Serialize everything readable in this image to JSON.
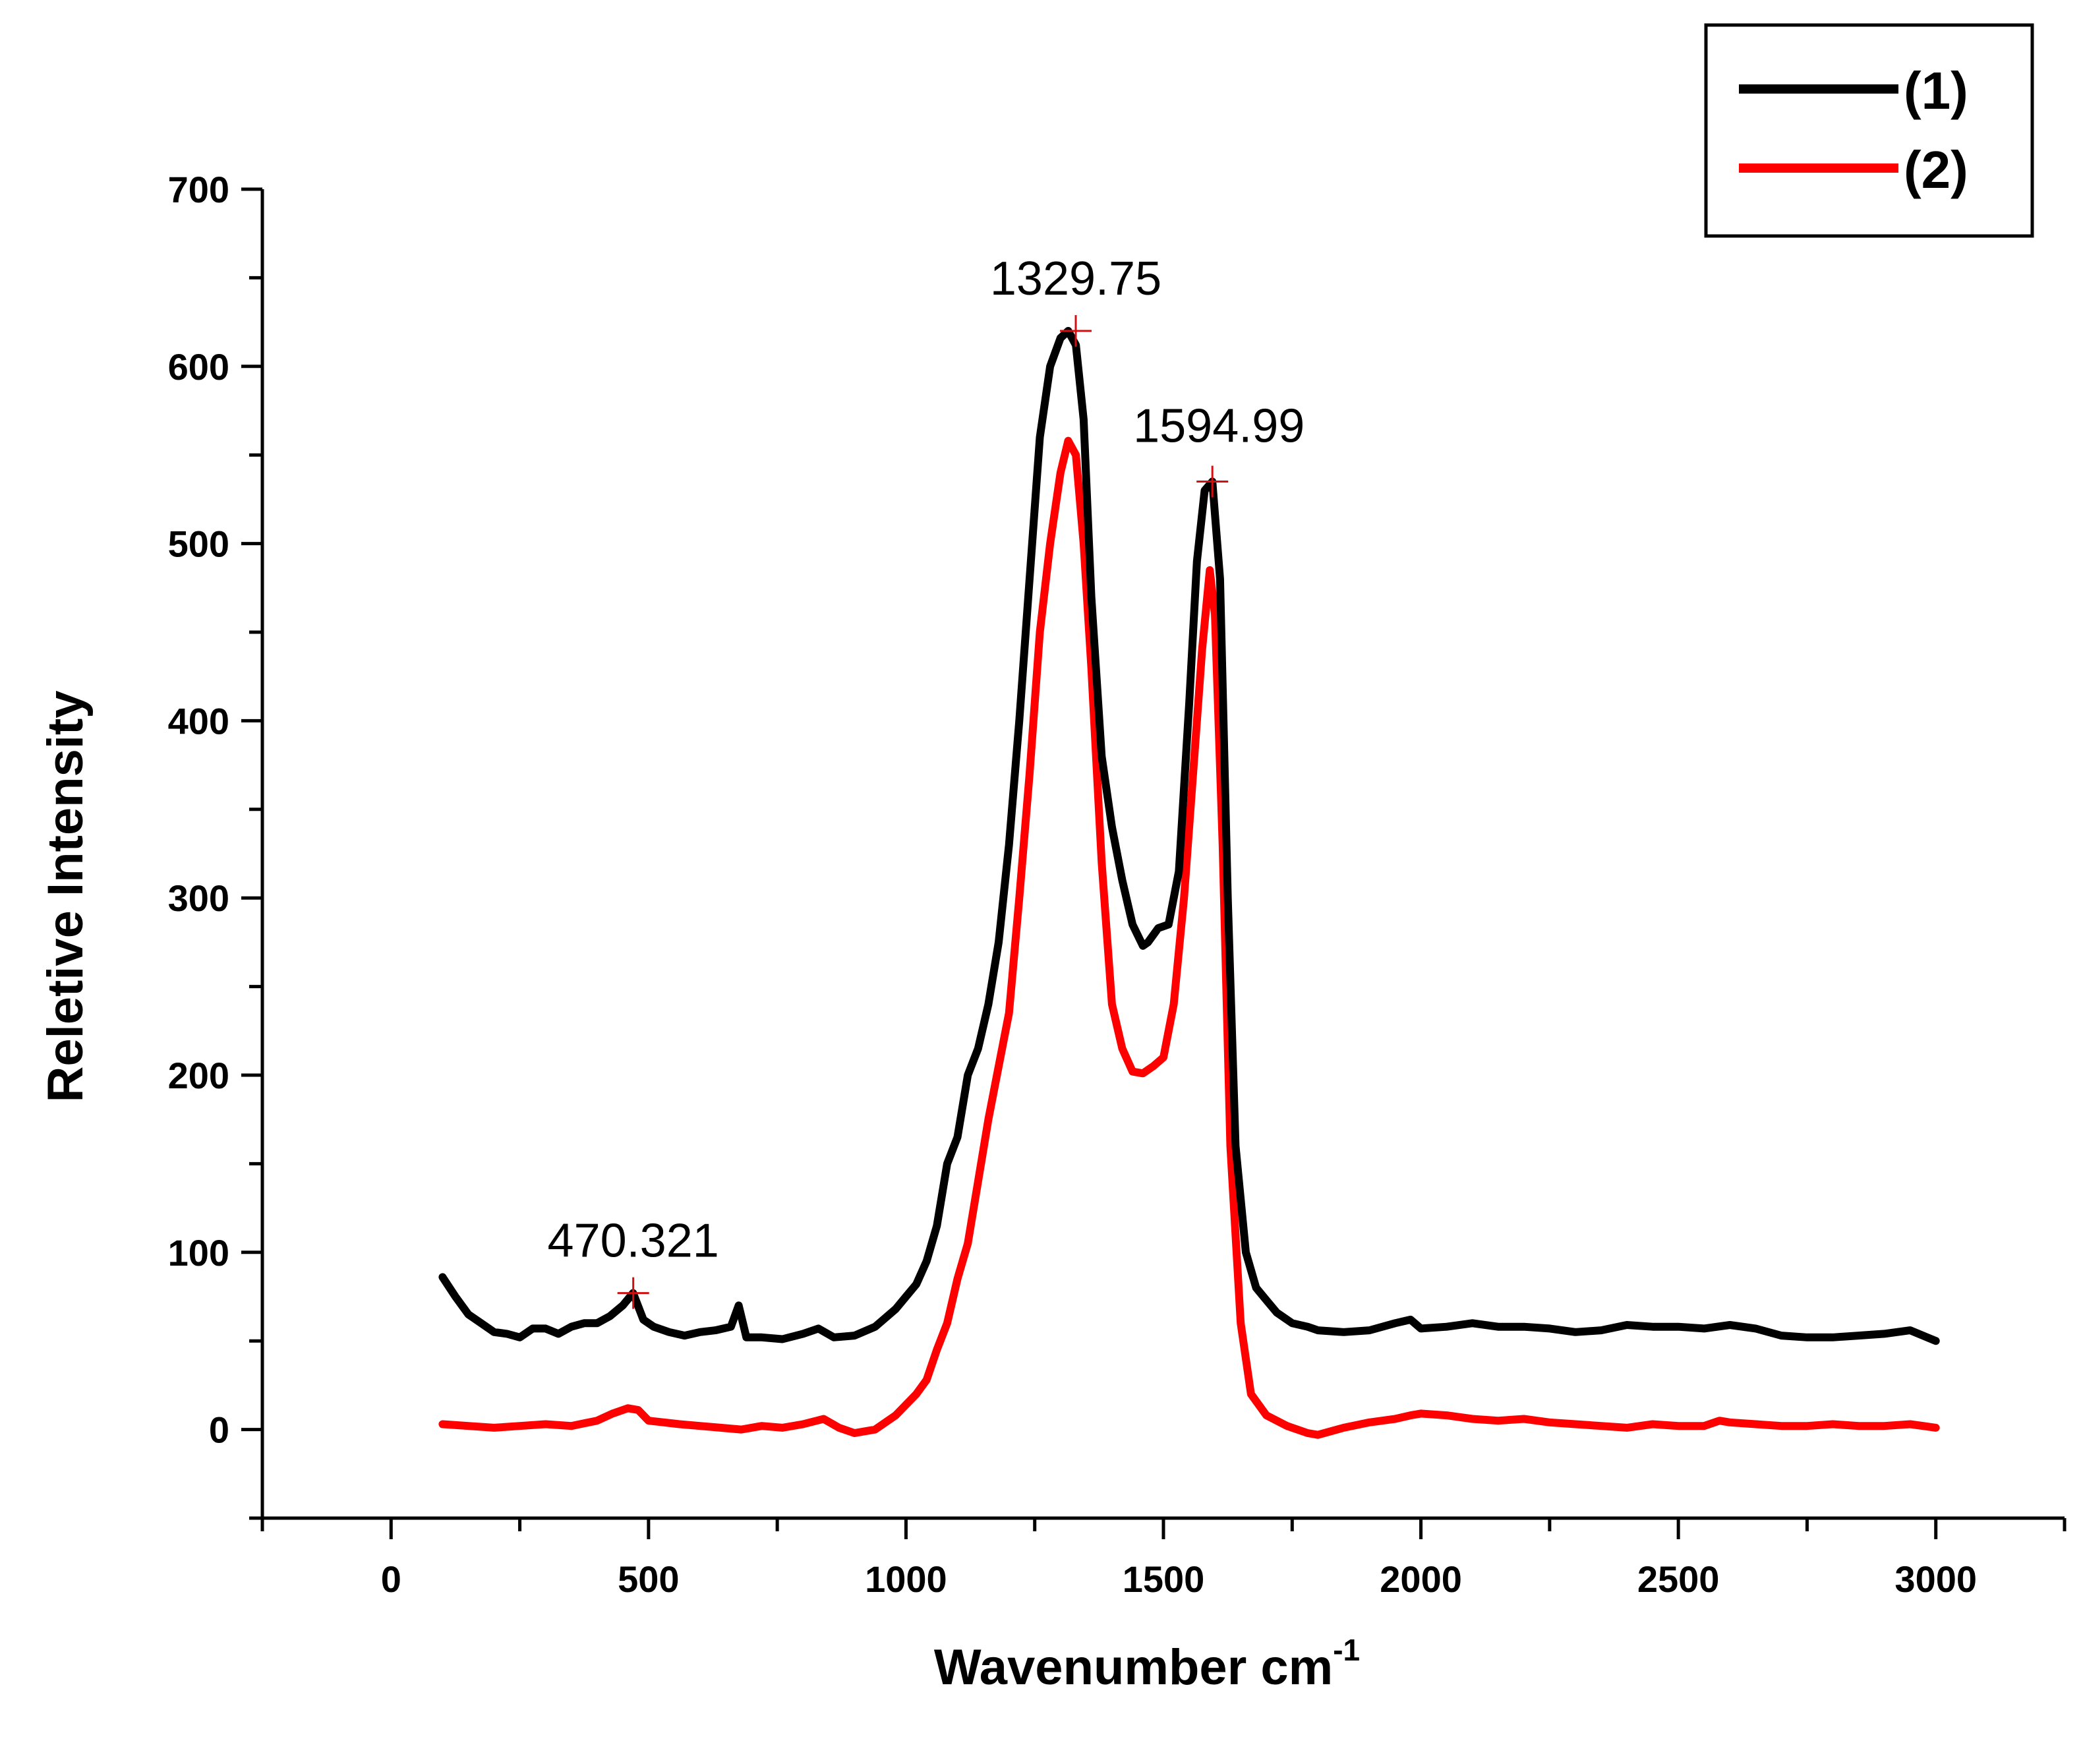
{
  "chart_data": {
    "type": "line",
    "title": "",
    "xlabel": "Wavenumber cm",
    "xlabel_superscript": "-1",
    "ylabel": "Reletive Intensity",
    "xlim": [
      -250,
      3250
    ],
    "ylim": [
      -50,
      700
    ],
    "x_ticks": [
      "0",
      "500",
      "1000",
      "1500",
      "2000",
      "2500",
      "3000"
    ],
    "y_ticks": [
      "0",
      "100",
      "200",
      "300",
      "400",
      "500",
      "600",
      "700"
    ],
    "legend_position": "top-right",
    "colors": {
      "series1": "#000000",
      "series2": "#ff0000",
      "marker": "#d01010"
    },
    "series": [
      {
        "name": "(1)",
        "x": [
          100,
          125,
          150,
          175,
          200,
          225,
          250,
          275,
          300,
          325,
          350,
          375,
          400,
          425,
          450,
          470,
          490,
          510,
          540,
          570,
          600,
          630,
          660,
          675,
          690,
          720,
          760,
          800,
          830,
          860,
          900,
          940,
          980,
          1000,
          1020,
          1040,
          1060,
          1080,
          1100,
          1120,
          1140,
          1160,
          1180,
          1200,
          1220,
          1240,
          1260,
          1280,
          1300,
          1315,
          1330,
          1345,
          1360,
          1380,
          1400,
          1420,
          1440,
          1460,
          1470,
          1490,
          1510,
          1530,
          1550,
          1565,
          1580,
          1595,
          1610,
          1625,
          1640,
          1660,
          1680,
          1700,
          1720,
          1750,
          1780,
          1800,
          1850,
          1900,
          1950,
          1980,
          2000,
          2050,
          2100,
          2150,
          2200,
          2250,
          2300,
          2350,
          2400,
          2450,
          2500,
          2550,
          2600,
          2650,
          2700,
          2750,
          2800,
          2850,
          2900,
          2950,
          3000
        ],
        "y": [
          86,
          75,
          65,
          60,
          55,
          54,
          52,
          57,
          57,
          54,
          58,
          60,
          60,
          64,
          70,
          77,
          62,
          58,
          55,
          53,
          55,
          56,
          58,
          70,
          52,
          52,
          51,
          54,
          57,
          52,
          53,
          58,
          68,
          75,
          82,
          95,
          115,
          150,
          165,
          200,
          215,
          240,
          275,
          330,
          400,
          480,
          560,
          600,
          616,
          620,
          612,
          570,
          470,
          380,
          340,
          310,
          285,
          273,
          275,
          283,
          285,
          315,
          410,
          490,
          530,
          535,
          480,
          300,
          160,
          100,
          80,
          73,
          66,
          60,
          58,
          56,
          55,
          56,
          60,
          62,
          57,
          58,
          60,
          58,
          58,
          57,
          55,
          56,
          59,
          58,
          58,
          57,
          59,
          57,
          53,
          52,
          52,
          53,
          54,
          56,
          50
        ]
      },
      {
        "name": "(2)",
        "x": [
          100,
          150,
          200,
          250,
          300,
          350,
          400,
          430,
          460,
          480,
          500,
          530,
          560,
          600,
          640,
          680,
          720,
          760,
          800,
          840,
          870,
          900,
          940,
          980,
          1000,
          1020,
          1040,
          1060,
          1080,
          1100,
          1120,
          1140,
          1160,
          1180,
          1200,
          1220,
          1240,
          1260,
          1280,
          1300,
          1315,
          1330,
          1345,
          1360,
          1380,
          1400,
          1420,
          1440,
          1460,
          1480,
          1500,
          1520,
          1540,
          1560,
          1575,
          1590,
          1600,
          1615,
          1630,
          1650,
          1670,
          1700,
          1740,
          1780,
          1800,
          1850,
          1900,
          1950,
          1980,
          2000,
          2050,
          2100,
          2150,
          2200,
          2250,
          2300,
          2350,
          2400,
          2450,
          2500,
          2550,
          2580,
          2600,
          2650,
          2700,
          2750,
          2800,
          2850,
          2900,
          2950,
          3000
        ],
        "y": [
          3,
          2,
          1,
          2,
          3,
          2,
          5,
          9,
          12,
          11,
          5,
          4,
          3,
          2,
          1,
          0,
          2,
          1,
          3,
          6,
          1,
          -2,
          0,
          8,
          14,
          20,
          28,
          45,
          60,
          85,
          105,
          140,
          175,
          205,
          235,
          300,
          370,
          450,
          500,
          540,
          558,
          550,
          500,
          430,
          320,
          240,
          215,
          202,
          201,
          205,
          210,
          240,
          300,
          380,
          440,
          485,
          460,
          330,
          160,
          60,
          20,
          8,
          2,
          -2,
          -3,
          1,
          4,
          6,
          8,
          9,
          8,
          6,
          5,
          6,
          4,
          3,
          2,
          1,
          3,
          2,
          2,
          5,
          4,
          3,
          2,
          2,
          3,
          2,
          2,
          3,
          1
        ]
      }
    ],
    "annotations": [
      {
        "text": "1329.75",
        "x": 1329.75,
        "y": 620
      },
      {
        "text": "1594.99",
        "x": 1594.99,
        "y": 535
      },
      {
        "text": "470.321",
        "x": 470.321,
        "y": 77
      }
    ]
  }
}
